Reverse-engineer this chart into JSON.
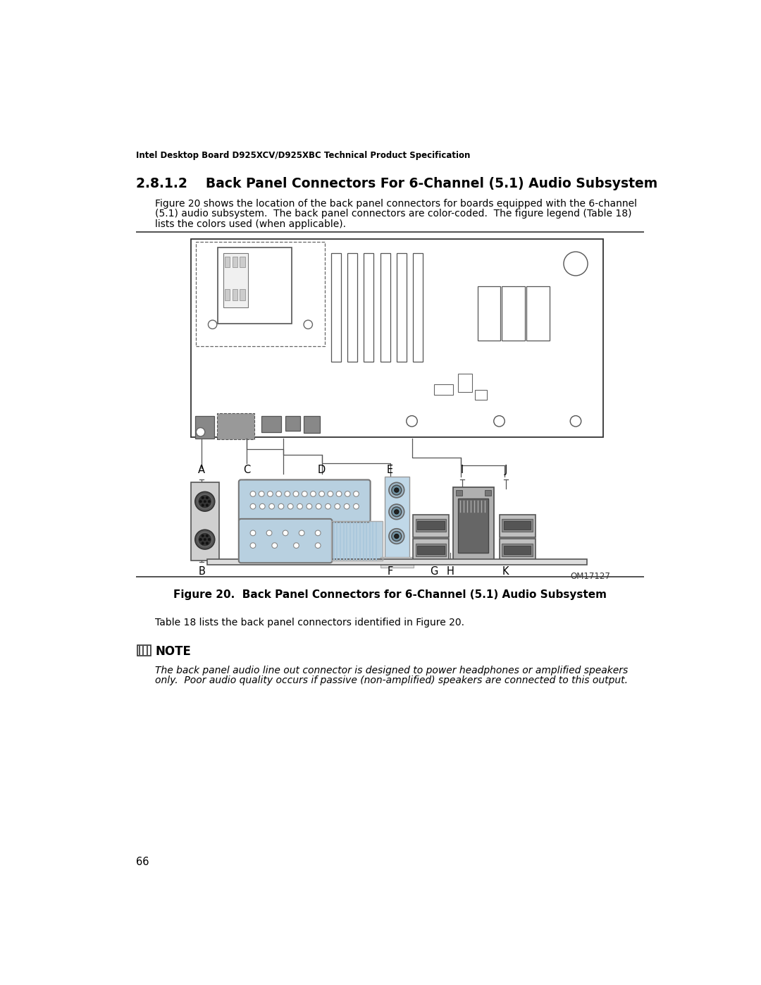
{
  "page_title": "Intel Desktop Board D925XCV/D925XBC Technical Product Specification",
  "section_number": "2.8.1.2",
  "section_title": "Back Panel Connectors For 6-Channel (5.1) Audio Subsystem",
  "body_line1": "Figure 20 shows the location of the back panel connectors for boards equipped with the 6-channel",
  "body_line2": "(5.1) audio subsystem.  The back panel connectors are color-coded.  The figure legend (Table 18)",
  "body_line3": "lists the colors used (when applicable).",
  "figure_caption": "Figure 20.  Back Panel Connectors for 6-Channel (5.1) Audio Subsystem",
  "figure_id": "OM17127",
  "body_text_2": "Table 18 lists the back panel connectors identified in Figure 20.",
  "note_title": "NOTE",
  "note_line1": "The back panel audio line out connector is designed to power headphones or amplified speakers",
  "note_line2": "only.  Poor audio quality occurs if passive (non-amplified) speakers are connected to this output.",
  "page_number": "66",
  "bg_color": "#ffffff",
  "gray_light": "#d0d0d0",
  "gray_mid": "#999999",
  "gray_dark": "#666666",
  "gray_connector": "#aaaaaa",
  "blue_light": "#b8d0e0",
  "blue_mid": "#8ab0c8",
  "line_color": "#444444",
  "mb_bg": "#ffffff",
  "note_icon_color": "#555555"
}
